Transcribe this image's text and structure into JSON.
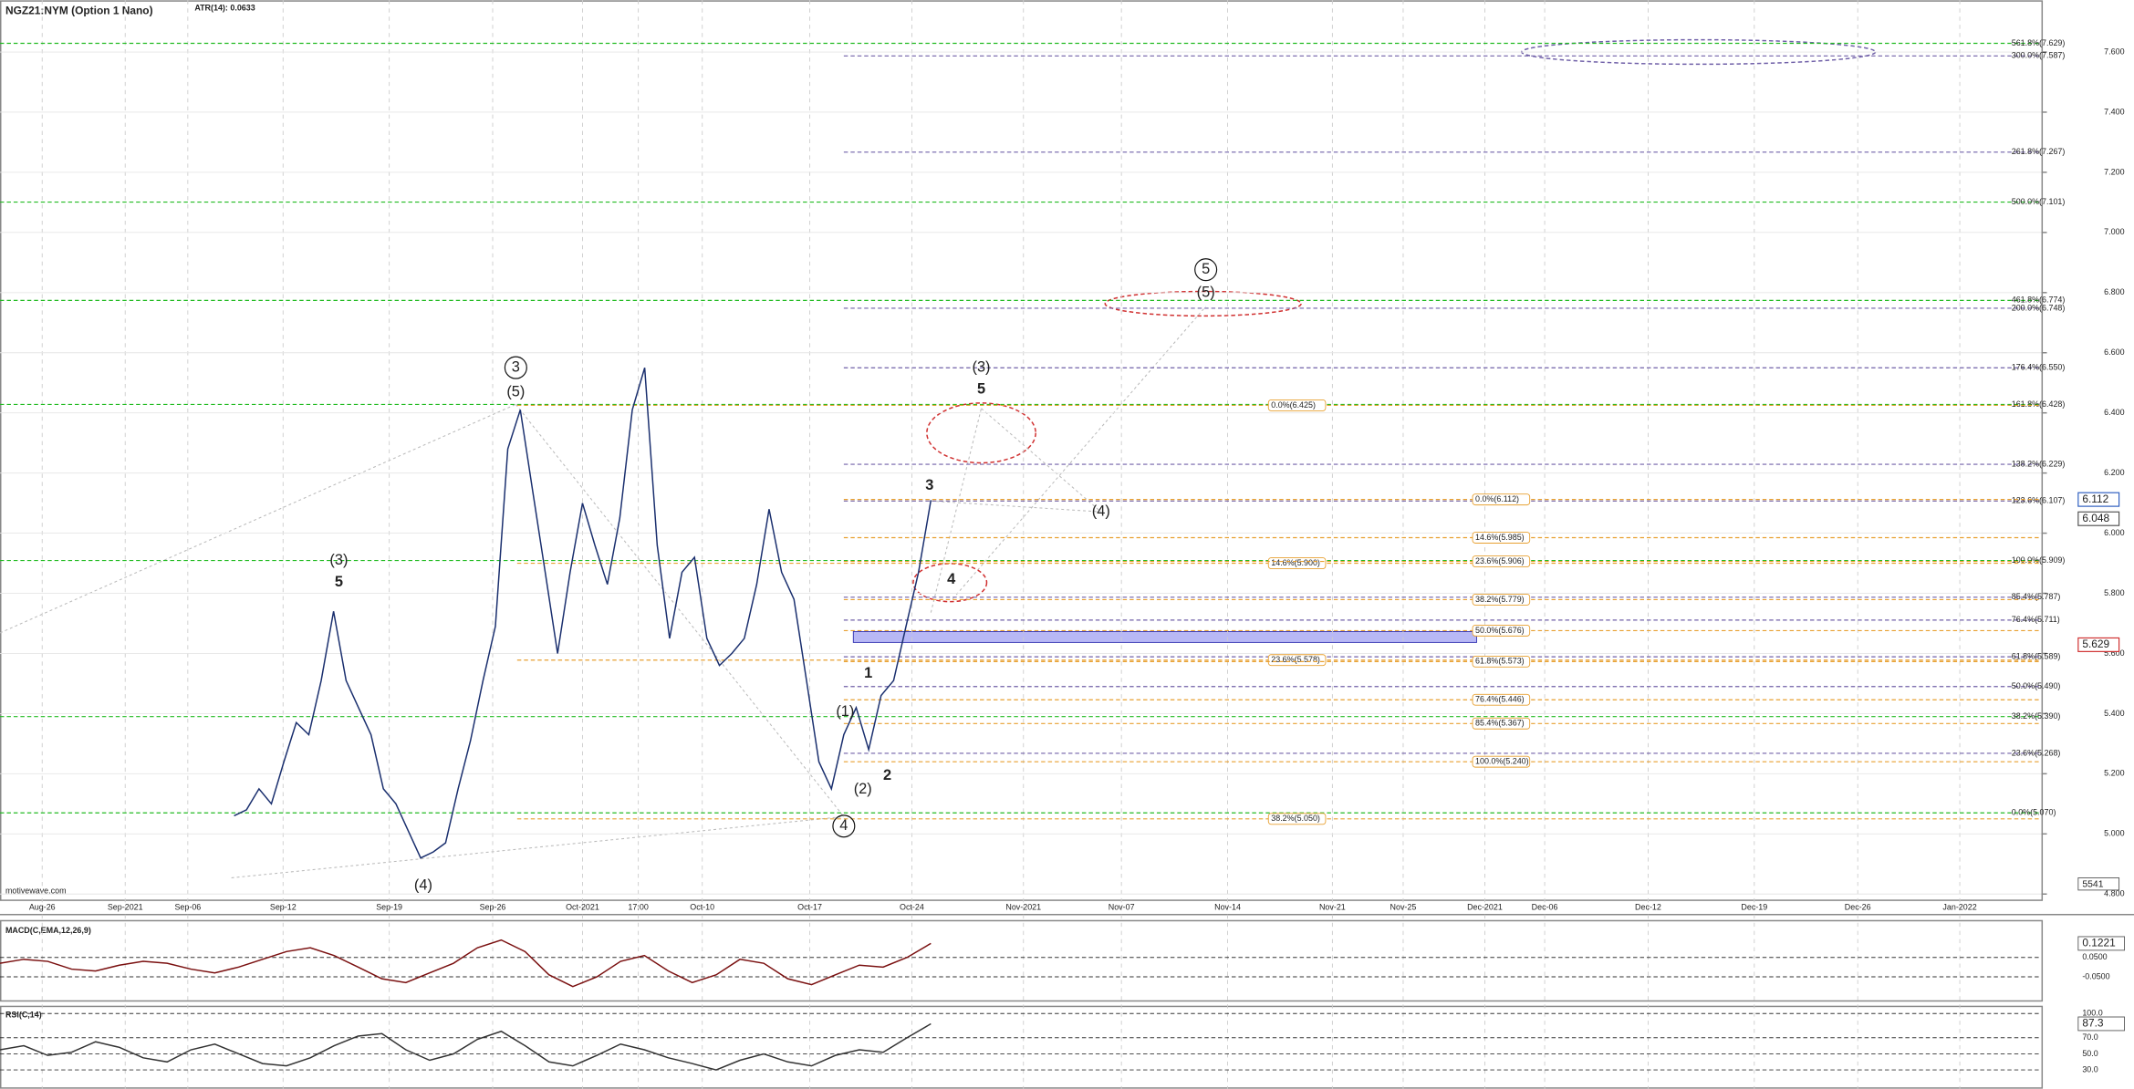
{
  "chart_data": [
    {
      "type": "line",
      "title": "NGZ21:NYM (Option 1 Nano)",
      "subtitle": "ATR(14): 0.0633",
      "watermark": "motivewave.com",
      "color": "#1a2f6e",
      "values": [
        5.06,
        5.08,
        5.15,
        5.1,
        5.24,
        5.37,
        5.33,
        5.51,
        5.74,
        5.51,
        5.42,
        5.33,
        5.15,
        5.1,
        5.01,
        4.92,
        4.94,
        4.97,
        5.15,
        5.31,
        5.51,
        5.69,
        6.28,
        6.41,
        6.14,
        5.87,
        5.6,
        5.87,
        6.1,
        5.96,
        5.83,
        6.05,
        6.41,
        6.55,
        5.96,
        5.65,
        5.87,
        5.92,
        5.65,
        5.56,
        5.6,
        5.65,
        5.83,
        6.08,
        5.87,
        5.78,
        5.51,
        5.24,
        5.15,
        5.33,
        5.42,
        5.28,
        5.46,
        5.51,
        5.69,
        5.87,
        6.11
      ],
      "ylim": [
        4.777,
        7.772
      ],
      "yticks": [
        {
          "value": 4.8,
          "label": "4.800"
        },
        {
          "value": 5.0,
          "label": "5.000"
        },
        {
          "value": 5.2,
          "label": "5.200"
        },
        {
          "value": 5.4,
          "label": "5.400"
        },
        {
          "value": 5.6,
          "label": "5.600"
        },
        {
          "value": 5.8,
          "label": "5.800"
        },
        {
          "value": 6.0,
          "label": "6.000"
        },
        {
          "value": 6.2,
          "label": "6.200"
        },
        {
          "value": 6.4,
          "label": "6.400"
        },
        {
          "value": 6.6,
          "label": "6.600"
        },
        {
          "value": 6.8,
          "label": "6.800"
        },
        {
          "value": 7.0,
          "label": "7.000"
        },
        {
          "value": 7.2,
          "label": "7.200"
        },
        {
          "value": 7.4,
          "label": "7.400"
        },
        {
          "value": 7.6,
          "label": "7.600"
        }
      ],
      "x_labels": [
        "Aug-26",
        "Sep-2021",
        "Sep-06",
        "Sep-12",
        "Sep-19",
        "Sep-26",
        "Oct-2021",
        "17:00",
        "Oct-10",
        "Oct-17",
        "Oct-24",
        "Nov-2021",
        "Nov-07",
        "Nov-14",
        "Nov-21",
        "Nov-25",
        "Dec-2021",
        "Dec-06",
        "Dec-12",
        "Dec-19",
        "Dec-26",
        "Jan-2022"
      ],
      "grid": true,
      "green_levels": {
        "color": "#22bb22",
        "levels": [
          {
            "value": 7.629,
            "label": "561.8%(7.629)"
          },
          {
            "value": 7.101,
            "label": "500.0%(7.101)"
          },
          {
            "value": 6.774,
            "label": "461.8%(6.774)"
          },
          {
            "value": 6.428,
            "label": "161.8%(6.428)"
          },
          {
            "value": 5.909,
            "label": "100.0%(5.909)"
          },
          {
            "value": 5.39,
            "label": "38.2%(5.390)"
          },
          {
            "value": 5.07,
            "label": "0.0%(5.070)"
          }
        ]
      },
      "purple_levels": {
        "color": "#7060a8",
        "levels": [
          {
            "value": 7.587,
            "label": "300.0%(7.587)"
          },
          {
            "value": 7.267,
            "label": "261.8%(7.267)"
          },
          {
            "value": 6.748,
            "label": "200.0%(6.748)"
          },
          {
            "value": 6.55,
            "label": "176.4%(6.550)"
          },
          {
            "value": 6.229,
            "label": "138.2%(6.229)"
          },
          {
            "value": 6.107,
            "label": "123.6%(6.107)"
          },
          {
            "value": 5.787,
            "label": "85.4%(5.787)"
          },
          {
            "value": 5.711,
            "label": "76.4%(5.711)"
          },
          {
            "value": 5.589,
            "label": "61.8%(5.589)"
          },
          {
            "value": 5.49,
            "label": "50.0%(5.490)"
          },
          {
            "value": 5.268,
            "label": "23.6%(5.268)"
          }
        ]
      },
      "orange_levels": {
        "color": "#e8a030",
        "levels": [
          {
            "value": 6.425,
            "label": "0.0%(6.425)"
          },
          {
            "value": 5.9,
            "label": "14.6%(5.900)"
          },
          {
            "value": 5.578,
            "label": "23.6%(5.578)"
          },
          {
            "value": 5.05,
            "label": "38.2%(5.050)"
          }
        ]
      },
      "retrace_levels": {
        "color": "#e8a030",
        "levels": [
          {
            "value": 6.112,
            "label": "0.0%(6.112)"
          },
          {
            "value": 5.985,
            "label": "14.6%(5.985)"
          },
          {
            "value": 5.906,
            "label": "23.6%(5.906)"
          },
          {
            "value": 5.779,
            "label": "38.2%(5.779)"
          },
          {
            "value": 5.676,
            "label": "50.0%(5.676)"
          },
          {
            "value": 5.573,
            "label": "61.8%(5.573)"
          },
          {
            "value": 5.446,
            "label": "76.4%(5.446)"
          },
          {
            "value": 5.367,
            "label": "85.4%(5.367)"
          },
          {
            "value": 5.24,
            "label": "100.0%(5.240)"
          }
        ]
      },
      "price_markers": [
        {
          "value": 6.112,
          "label": "6.112",
          "color": "#3060c0"
        },
        {
          "value": 6.048,
          "label": "6.048",
          "color": "#555555"
        },
        {
          "value": 5.629,
          "label": "5.629",
          "color": "#d03030"
        }
      ],
      "volume_label": "5541",
      "waves": [
        {
          "text": "(3)"
        },
        {
          "text": "5",
          "bold": true
        },
        {
          "text": "3",
          "circled": true
        },
        {
          "text": "(5)"
        },
        {
          "text": "(4)"
        },
        {
          "text": "(1)"
        },
        {
          "text": "1",
          "bold": true
        },
        {
          "text": "(2)"
        },
        {
          "text": "2",
          "bold": true
        },
        {
          "text": "4",
          "circled": true
        },
        {
          "text": "3",
          "bold": true
        },
        {
          "text": "4",
          "bold": true
        },
        {
          "text": "(3)"
        },
        {
          "text": "5",
          "bold": true
        },
        {
          "text": "(4)"
        },
        {
          "text": "5",
          "circled": true
        },
        {
          "text": "(5)"
        }
      ]
    },
    {
      "type": "line",
      "title": "MACD(C,EMA,12,26,9)",
      "color": "#7a1010",
      "values": [
        0.02,
        0.04,
        0.03,
        -0.01,
        -0.02,
        0.01,
        0.03,
        0.02,
        -0.01,
        -0.03,
        0.0,
        0.04,
        0.08,
        0.1,
        0.06,
        0.0,
        -0.06,
        -0.08,
        -0.03,
        0.02,
        0.1,
        0.14,
        0.08,
        -0.04,
        -0.1,
        -0.05,
        0.03,
        0.06,
        -0.02,
        -0.08,
        -0.04,
        0.04,
        0.02,
        -0.06,
        -0.09,
        -0.04,
        0.01,
        0.0,
        0.05,
        0.1221
      ],
      "ylim": [
        -0.171,
        0.236
      ],
      "yticks": [
        {
          "value": 0.05,
          "label": "0.0500"
        },
        {
          "value": -0.05,
          "label": "-0.0500"
        }
      ],
      "current_label": "0.1221"
    },
    {
      "type": "line",
      "title": "RSI(C,14)",
      "color": "#333333",
      "values": [
        55,
        60,
        48,
        52,
        65,
        58,
        45,
        40,
        55,
        62,
        50,
        38,
        35,
        45,
        60,
        72,
        75,
        55,
        42,
        50,
        68,
        78,
        60,
        40,
        35,
        48,
        62,
        55,
        45,
        38,
        30,
        42,
        50,
        40,
        35,
        48,
        55,
        52,
        70,
        87.3
      ],
      "ylim": [
        6.7,
        108
      ],
      "yticks": [
        {
          "value": 100,
          "label": "100.0"
        },
        {
          "value": 70,
          "label": "70.0"
        },
        {
          "value": 50,
          "label": "50.0"
        },
        {
          "value": 30,
          "label": "30.0"
        }
      ],
      "current_label": "87.3"
    }
  ]
}
